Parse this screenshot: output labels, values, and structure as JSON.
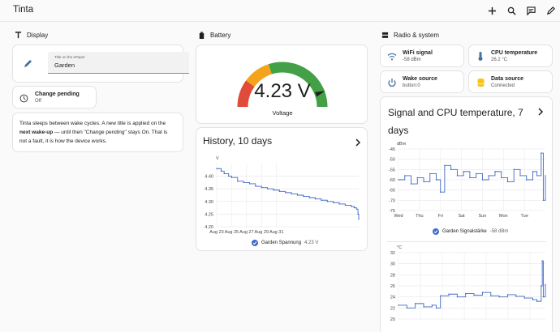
{
  "app": {
    "title": "Tinta"
  },
  "sections": {
    "display": "Display",
    "battery": "Battery",
    "radio": "Radio & system"
  },
  "display": {
    "title_field": {
      "label": "Title on the ePaper",
      "value": "Garden"
    },
    "change_pending": {
      "label": "Change pending",
      "state": "Off"
    },
    "note": {
      "part1": "Tinta sleeps between wake cycles. A new title is applied on the ",
      "bold": "next wake-up",
      "part2": " — until then \"Change pending\" stays On. That is not a fault, it is how the device works."
    }
  },
  "battery": {
    "gauge": {
      "value_text": "4.23 V",
      "label": "Voltage",
      "value": 4.23,
      "min": 3.3,
      "max": 4.35
    },
    "history": {
      "title": "History, 10 days",
      "legend": "Garden Spannung",
      "legend_value": "4.23 V"
    }
  },
  "radio": {
    "tiles": [
      {
        "label": "WiFi signal",
        "state": "-58 dBm",
        "icon": "wifi-icon"
      },
      {
        "label": "CPU temperature",
        "state": "26.2 °C",
        "icon": "thermometer-icon"
      },
      {
        "label": "Wake source",
        "state": "button:0",
        "icon": "power-icon"
      },
      {
        "label": "Data source",
        "state": "Connected",
        "icon": "database-icon"
      }
    ],
    "chart": {
      "title": "Signal and CPU temperature, 7 days",
      "legend": "Garden Signalstärke",
      "legend_value": "-58 dBm"
    }
  },
  "colors": {
    "accent": "#3f69c8",
    "gauge_red": "#e04b3a",
    "gauge_orange": "#f4a31a",
    "gauge_green": "#43a047",
    "line": "#3f69c8"
  },
  "chart_data": [
    {
      "type": "line",
      "title": "",
      "ylabel": "V",
      "ylim": [
        4.2,
        4.45
      ],
      "yticks": [
        "4.40",
        "4.35",
        "4.30",
        "4.25",
        "4.20"
      ],
      "x_ticks": [
        "Aug 23",
        "Aug 25",
        "Aug 27",
        "Aug 29",
        "Aug 31"
      ],
      "series": [
        {
          "name": "Garden Spannung",
          "x": [
            0,
            0.3,
            0.5,
            0.8,
            1.0,
            1.4,
            1.8,
            2.2,
            2.6,
            3.0,
            3.4,
            3.8,
            4.2,
            4.6,
            5.0,
            5.4,
            5.8,
            6.2,
            6.6,
            7.0,
            7.4,
            7.8,
            8.2,
            8.6,
            9.0,
            9.2,
            9.35,
            9.45,
            9.5
          ],
          "values": [
            4.43,
            4.42,
            4.41,
            4.4,
            4.395,
            4.38,
            4.375,
            4.37,
            4.36,
            4.355,
            4.35,
            4.345,
            4.34,
            4.335,
            4.33,
            4.325,
            4.32,
            4.315,
            4.31,
            4.305,
            4.3,
            4.295,
            4.29,
            4.285,
            4.28,
            4.275,
            4.27,
            4.25,
            4.23
          ]
        }
      ]
    },
    {
      "type": "line",
      "ylabel": "dBm",
      "ylim": [
        -75,
        -45
      ],
      "yticks": [
        "-45",
        "-50",
        "-55",
        "-60",
        "-65",
        "-70",
        "-75"
      ],
      "x_ticks": [
        "Wed",
        "Thu",
        "Fri",
        "Sat",
        "Sun",
        "Mon",
        "Tue"
      ],
      "series": [
        {
          "name": "Garden Signalstärke",
          "x": [
            0,
            0.3,
            0.6,
            0.9,
            1.2,
            1.5,
            1.8,
            2.0,
            2.2,
            2.5,
            2.8,
            3.1,
            3.4,
            3.7,
            4.0,
            4.3,
            4.6,
            4.9,
            5.2,
            5.5,
            5.8,
            6.1,
            6.4,
            6.6,
            6.8,
            6.9,
            7.0
          ],
          "values": [
            -60,
            -58,
            -62,
            -59,
            -61,
            -57,
            -60,
            -66,
            -53,
            -55,
            -58,
            -56,
            -59,
            -57,
            -60,
            -58,
            -56,
            -59,
            -61,
            -55,
            -58,
            -60,
            -56,
            -58,
            -47,
            -70,
            -58
          ]
        }
      ]
    },
    {
      "type": "line",
      "ylabel": "°C",
      "ylim": [
        20,
        32
      ],
      "yticks": [
        "32",
        "30",
        "28",
        "26",
        "24",
        "22",
        "20"
      ],
      "x_ticks": [],
      "series": [
        {
          "name": "CPU temperature",
          "x": [
            0,
            0.4,
            0.8,
            1.2,
            1.6,
            1.8,
            2.0,
            2.4,
            2.8,
            3.2,
            3.6,
            4.0,
            4.4,
            4.8,
            5.2,
            5.6,
            6.0,
            6.4,
            6.6,
            6.8,
            6.85,
            6.9,
            7.0
          ],
          "values": [
            22.5,
            22.0,
            22.8,
            22.2,
            22.5,
            22.0,
            24.2,
            24.5,
            24.0,
            24.6,
            24.3,
            24.8,
            24.2,
            24.0,
            24.4,
            24.1,
            23.8,
            23.5,
            23.2,
            26.0,
            30.5,
            24.0,
            26.2
          ]
        }
      ]
    }
  ]
}
